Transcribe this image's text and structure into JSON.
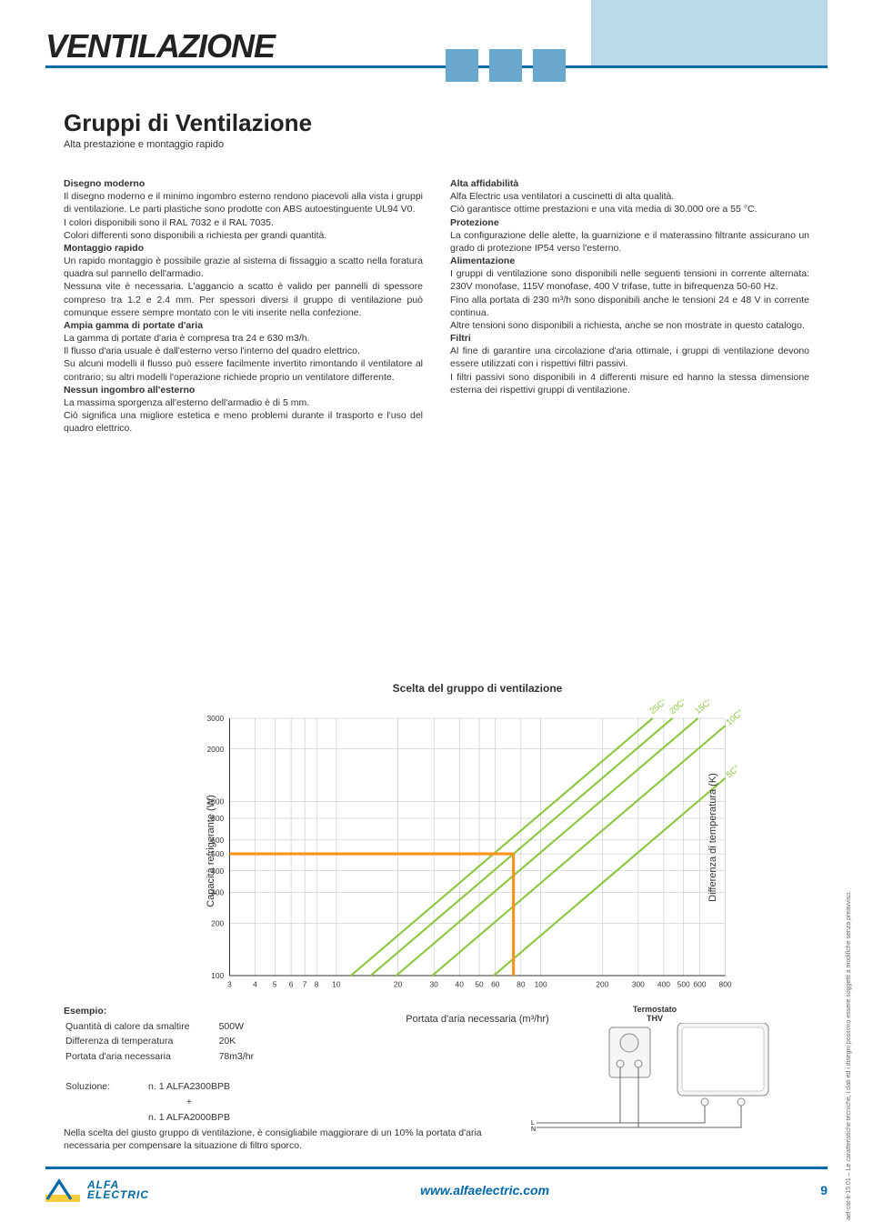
{
  "header": {
    "title": "VENTILAZIONE",
    "accent_color": "#69a7cc",
    "rule_color": "#0068a8",
    "top_block_color": "#bcd9ea"
  },
  "subtitle": {
    "heading": "Gruppi di Ventilazione",
    "tagline": "Alta prestazione e montaggio rapido"
  },
  "left_col": {
    "h1": "Disegno moderno",
    "p1": "Il disegno moderno e il minimo ingombro esterno rendono piacevoli alla vista i gruppi di ventilazione. Le parti plastiche sono prodotte con ABS autoestinguente UL94 V0.",
    "p2": "I colori disponibili sono il RAL 7032 e il RAL 7035.",
    "p3": "Colori differenti sono disponibili a richiesta per grandi quantità.",
    "h2": "Montaggio rapido",
    "p4": "Un rapido montaggio è possibile grazie al sistema di fissaggio a scatto nella foratura quadra sul pannello dell'armadio.",
    "p5": "Nessuna vite è necessaria. L'aggancio a scatto è valido per pannelli di spessore compreso tra 1.2 e 2.4 mm. Per spessori diversi il gruppo di ventilazione può comunque essere sempre montato con le viti inserite nella confezione.",
    "h3": "Ampia gamma di portate d'aria",
    "p6": "La gamma di portate d'aria è compresa tra 24 e 630 m3/h.",
    "p7": "Il flusso d'aria usuale è dall'esterno verso l'interno del quadro elettrico.",
    "p8": "Su alcuni modelli il flusso può essere facilmente invertito rimontando il ventilatore al contrario; su altri modelli l'operazione richiede proprio un ventilatore differente.",
    "h4": "Nessun ingombro all'esterno",
    "p9": "La massima sporgenza all'esterno dell'armadio è di 5 mm.",
    "p10": "Ciò significa una migliore estetica e meno problemi durante il trasporto e l'uso del quadro elettrico."
  },
  "right_col": {
    "h1": "Alta affidabilità",
    "p1": "Alfa Electric usa ventilatori a cuscinetti di alta qualità.",
    "p2": "Ciò garantisce ottime prestazioni e una vita media di 30.000 ore a 55 °C.",
    "h2": "Protezione",
    "p3": "La configurazione delle alette, la guarnizione e il materassino filtrante assicurano un grado di protezione IP54 verso l'esterno.",
    "h3": "Alimentazione",
    "p4": "I gruppi di ventilazione sono disponibili nelle seguenti tensioni in corrente alternata: 230V monofase, 115V monofase, 400 V trifase, tutte in bifrequenza 50-60 Hz.",
    "p5": "Fino alla portata di 230 m³/h sono disponibili anche le tensioni 24 e 48 V in corrente continua.",
    "p6": "Altre tensioni sono disponibili a richiesta, anche se non mostrate in questo catalogo.",
    "h4": "Filtri",
    "p7": "Al fine di garantire una circolazione d'aria ottimale, i gruppi di ventilazione devono essere utilizzati con i rispettivi filtri passivi.",
    "p8": "I filtri passivi sono disponibili in 4 differenti misure ed hanno la stessa dimensione esterna dei rispettivi gruppi di ventilazione."
  },
  "chart": {
    "title": "Scelta del gruppo di ventilazione",
    "y_label": "Capacità refrigerante (W)",
    "y2_label": "Differenza di temperatura (K)",
    "x_label": "Portata d'aria necessaria (m³/hr)",
    "x_ticks": [
      "3",
      "4",
      "5",
      "6",
      "7",
      "8",
      "10",
      "20",
      "30",
      "40",
      "50",
      "60",
      "80",
      "100",
      "200",
      "300",
      "400",
      "500",
      "600",
      "800"
    ],
    "y_ticks": [
      "100",
      "200",
      "300",
      "400",
      "500",
      "600",
      "800",
      "1000",
      "2000",
      "3000"
    ],
    "line_labels": [
      "25C°",
      "20C°",
      "15C°",
      "10C°",
      "5C°"
    ],
    "line_color": "#8cc63f",
    "highlight_color": "#f7941e",
    "grid_color": "#bbbbbb",
    "bg": "#ffffff",
    "xlim_log": [
      3,
      800
    ],
    "ylim_log": [
      100,
      3000
    ],
    "highlight_y": 500,
    "highlight_x": 78
  },
  "example": {
    "heading": "Esempio:",
    "rows": [
      [
        "Quantità di calore da smaltire",
        "500W"
      ],
      [
        "Differenza di temperatura",
        "20K"
      ],
      [
        "Portata d'aria necessaria",
        "78m3/hr"
      ]
    ],
    "solution_label": "Soluzione:",
    "solution_1": "n. 1 ALFA2300BPB",
    "plus": "+",
    "solution_2": "n. 1 ALFA2000BPB",
    "note": "Nella scelta del giusto gruppo di ventilazione, è consigliabile maggiorare di un 10% la portata d'aria necessaria per compensare la situazione di filtro sporco."
  },
  "thermostat": {
    "label1": "Termostato",
    "label2": "THV",
    "L": "L",
    "N": "N"
  },
  "footer": {
    "logo_top": "ALFA",
    "logo_bottom": "ELECTRIC",
    "url": "www.alfaelectric.com",
    "page": "9"
  },
  "side_note": "ael-cat-it-15.01 – Le caratteristiche tecniche, i dati ed i disegni possono essere soggetti a modifiche senza preavviso."
}
